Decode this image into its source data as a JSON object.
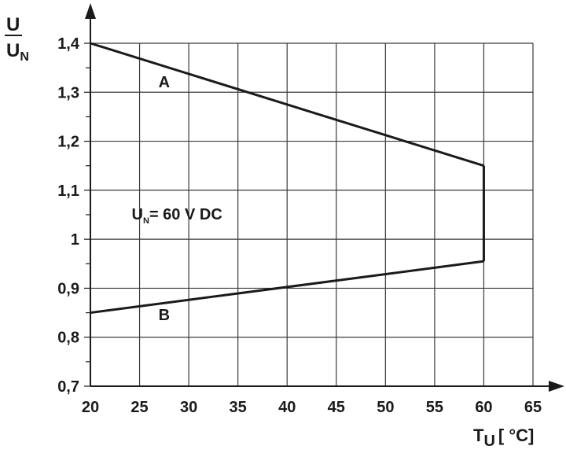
{
  "chart_data": {
    "type": "line",
    "x_axis": {
      "label_main": "T",
      "label_sub": "U",
      "label_unit": "[ °C]",
      "ticks": [
        20,
        25,
        30,
        35,
        40,
        45,
        50,
        55,
        60,
        65
      ],
      "tick_labels": [
        "20",
        "25",
        "30",
        "35",
        "40",
        "45",
        "50",
        "55",
        "60",
        "65"
      ],
      "range": [
        20,
        65
      ]
    },
    "y_axis": {
      "label_numerator": "U",
      "label_denominator_main": "U",
      "label_denominator_sub": "N",
      "ticks": [
        0.7,
        0.8,
        0.9,
        1.0,
        1.1,
        1.2,
        1.3,
        1.4
      ],
      "tick_labels": [
        "0,7",
        "0,8",
        "0,9",
        "1",
        "1,1",
        "1,2",
        "1,3",
        "1,4"
      ],
      "range": [
        0.7,
        1.4
      ]
    },
    "grid": true,
    "series": [
      {
        "name": "A",
        "points": [
          [
            20,
            1.4
          ],
          [
            60,
            1.15
          ]
        ]
      },
      {
        "name": "B",
        "points": [
          [
            20,
            0.85
          ],
          [
            60,
            0.955
          ]
        ]
      },
      {
        "name": "",
        "points": [
          [
            60,
            1.15
          ],
          [
            60,
            0.955
          ]
        ]
      }
    ],
    "labels": [
      {
        "id": "A",
        "text": "A",
        "x": 27.5,
        "y": 1.31
      },
      {
        "id": "B",
        "text": "B",
        "x": 27.5,
        "y": 0.835
      }
    ],
    "annotation": {
      "main": "U",
      "sub": "N",
      "rest": "= 60 V DC",
      "x": 24.2,
      "y": 1.04
    }
  }
}
